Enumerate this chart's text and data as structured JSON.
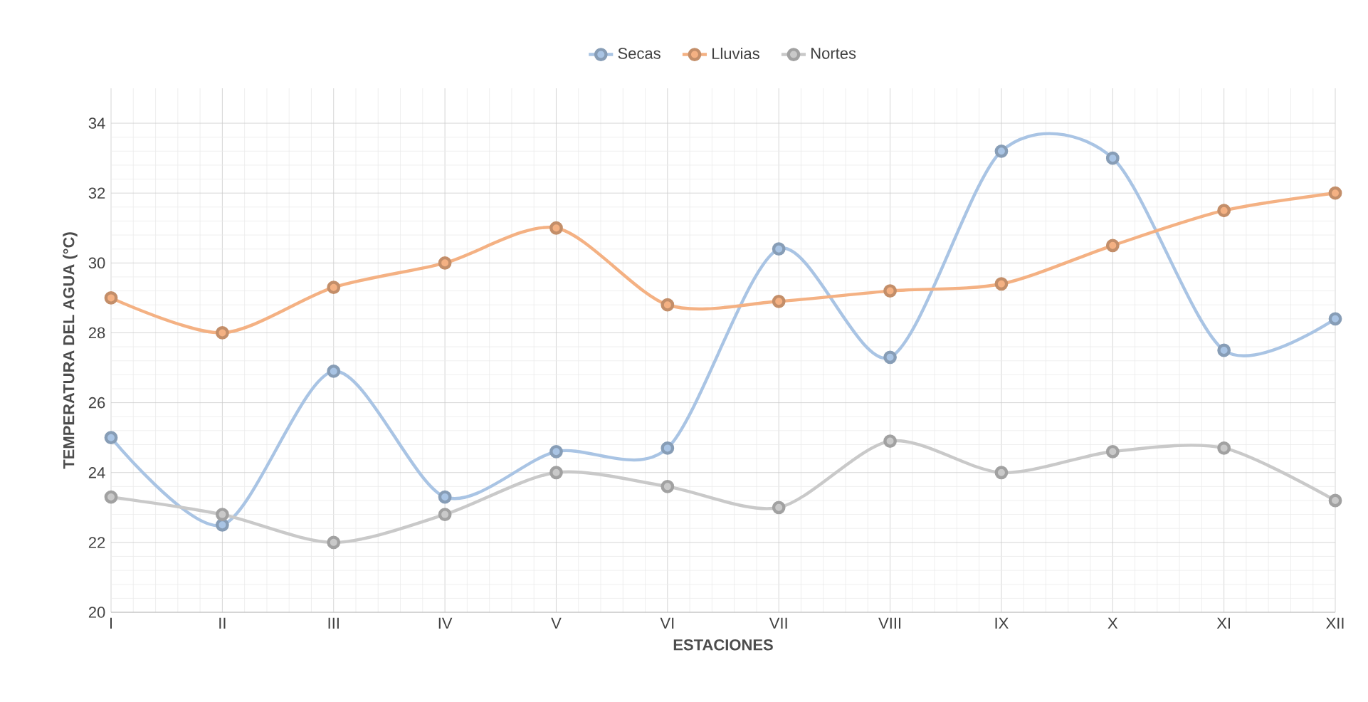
{
  "chart_data": {
    "type": "line",
    "xlabel": "ESTACIONES",
    "ylabel": "TEMPERATURA DEL AGUA (°C)",
    "categories": [
      "I",
      "II",
      "III",
      "IV",
      "V",
      "VI",
      "VII",
      "VIII",
      "IX",
      "X",
      "XI",
      "XII"
    ],
    "series": [
      {
        "name": "Secas",
        "color": "#a9c4e4",
        "values": [
          25.0,
          22.5,
          26.9,
          23.3,
          24.6,
          24.7,
          30.4,
          27.3,
          33.2,
          33.0,
          27.5,
          28.4
        ]
      },
      {
        "name": "Lluvias",
        "color": "#f4b183",
        "values": [
          29.0,
          28.0,
          29.3,
          30.0,
          31.0,
          28.8,
          28.9,
          29.2,
          29.4,
          30.5,
          31.5,
          32.0
        ]
      },
      {
        "name": "Nortes",
        "color": "#c9c9c9",
        "values": [
          23.3,
          22.8,
          22.0,
          22.8,
          24.0,
          23.6,
          23.0,
          24.9,
          24.0,
          24.6,
          24.7,
          23.2
        ]
      }
    ],
    "ylim": [
      20,
      35
    ],
    "yticks": [
      20,
      22,
      24,
      26,
      28,
      30,
      32,
      34
    ],
    "grid": true,
    "legend": "top",
    "marker": "circle",
    "line_style": "solid"
  }
}
